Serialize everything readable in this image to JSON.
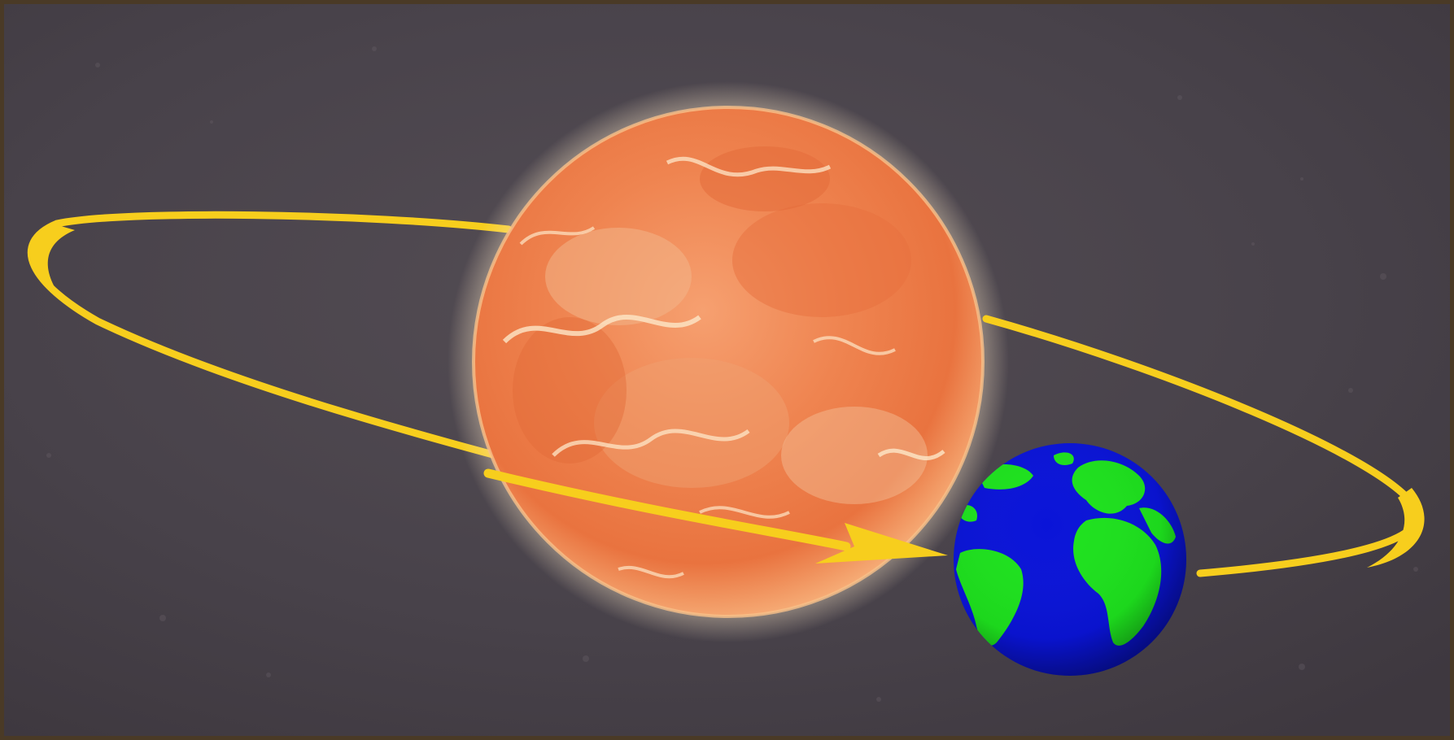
{
  "diagram": {
    "kind": "orbit-illustration",
    "bodies": [
      {
        "name": "sun",
        "icon": "sun-icon"
      },
      {
        "name": "earth",
        "icon": "earth-globe-icon"
      }
    ],
    "orbit": {
      "icon": "orbit-arrow-icon",
      "direction": "counter-clockwise"
    },
    "colors": {
      "frame": "#4a3a26",
      "space": "#4b454b",
      "orbit": "#f7ce1d",
      "sun_light": "#fbe6c0",
      "sun_mid": "#f28a52",
      "sun_dark": "#e06a3c",
      "ocean": "#0a14d8",
      "land": "#1ee21e"
    }
  }
}
